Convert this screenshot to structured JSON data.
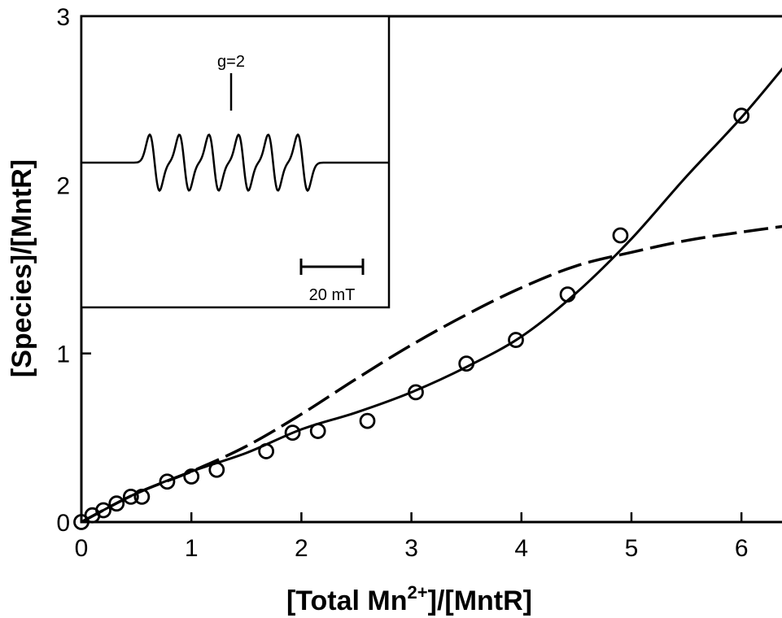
{
  "chart_data": {
    "type": "scatter",
    "xlabel": "[Total Mn2+]/[MntR]",
    "ylabel": "[Species]/[MntR]",
    "xlabel_parts": {
      "pre": "[Total Mn",
      "sup": "2+",
      "post": "]/[MntR]"
    },
    "xlim": [
      0,
      6.45
    ],
    "ylim": [
      0,
      3
    ],
    "xticks": [
      "0",
      "1",
      "2",
      "3",
      "4",
      "5",
      "6"
    ],
    "yticks": [
      "0",
      "1",
      "2",
      "3"
    ],
    "series": [
      {
        "style": "open-circle markers",
        "x": [
          0.0,
          0.1,
          0.2,
          0.32,
          0.45,
          0.55,
          0.78,
          1.0,
          1.23,
          1.68,
          1.92,
          2.15,
          2.6,
          3.04,
          3.5,
          3.95,
          4.42,
          4.9,
          6.0
        ],
        "y": [
          0.0,
          0.04,
          0.07,
          0.11,
          0.15,
          0.15,
          0.24,
          0.27,
          0.31,
          0.42,
          0.53,
          0.54,
          0.6,
          0.77,
          0.94,
          1.08,
          1.35,
          1.7,
          2.41
        ]
      },
      {
        "style": "solid line",
        "x": [
          0.0,
          0.5,
          1.0,
          1.5,
          2.0,
          2.5,
          3.0,
          3.5,
          4.0,
          4.5,
          5.0,
          5.5,
          6.0,
          6.45
        ],
        "y": [
          0.0,
          0.17,
          0.3,
          0.41,
          0.55,
          0.65,
          0.77,
          0.92,
          1.1,
          1.36,
          1.68,
          2.05,
          2.4,
          2.75
        ]
      },
      {
        "style": "dashed line",
        "x": [
          0.0,
          0.5,
          1.0,
          1.5,
          2.0,
          2.5,
          3.0,
          3.5,
          4.0,
          4.5,
          5.0,
          5.5,
          6.0,
          6.45
        ],
        "y": [
          0.0,
          0.17,
          0.3,
          0.45,
          0.64,
          0.85,
          1.05,
          1.23,
          1.39,
          1.52,
          1.6,
          1.67,
          1.72,
          1.76
        ]
      }
    ],
    "inset": {
      "type": "EPR spectrum",
      "label_g": "g=2",
      "scale_label": "20 mT",
      "hyperfine_lines": 6
    },
    "grid": false,
    "legend": "none"
  }
}
